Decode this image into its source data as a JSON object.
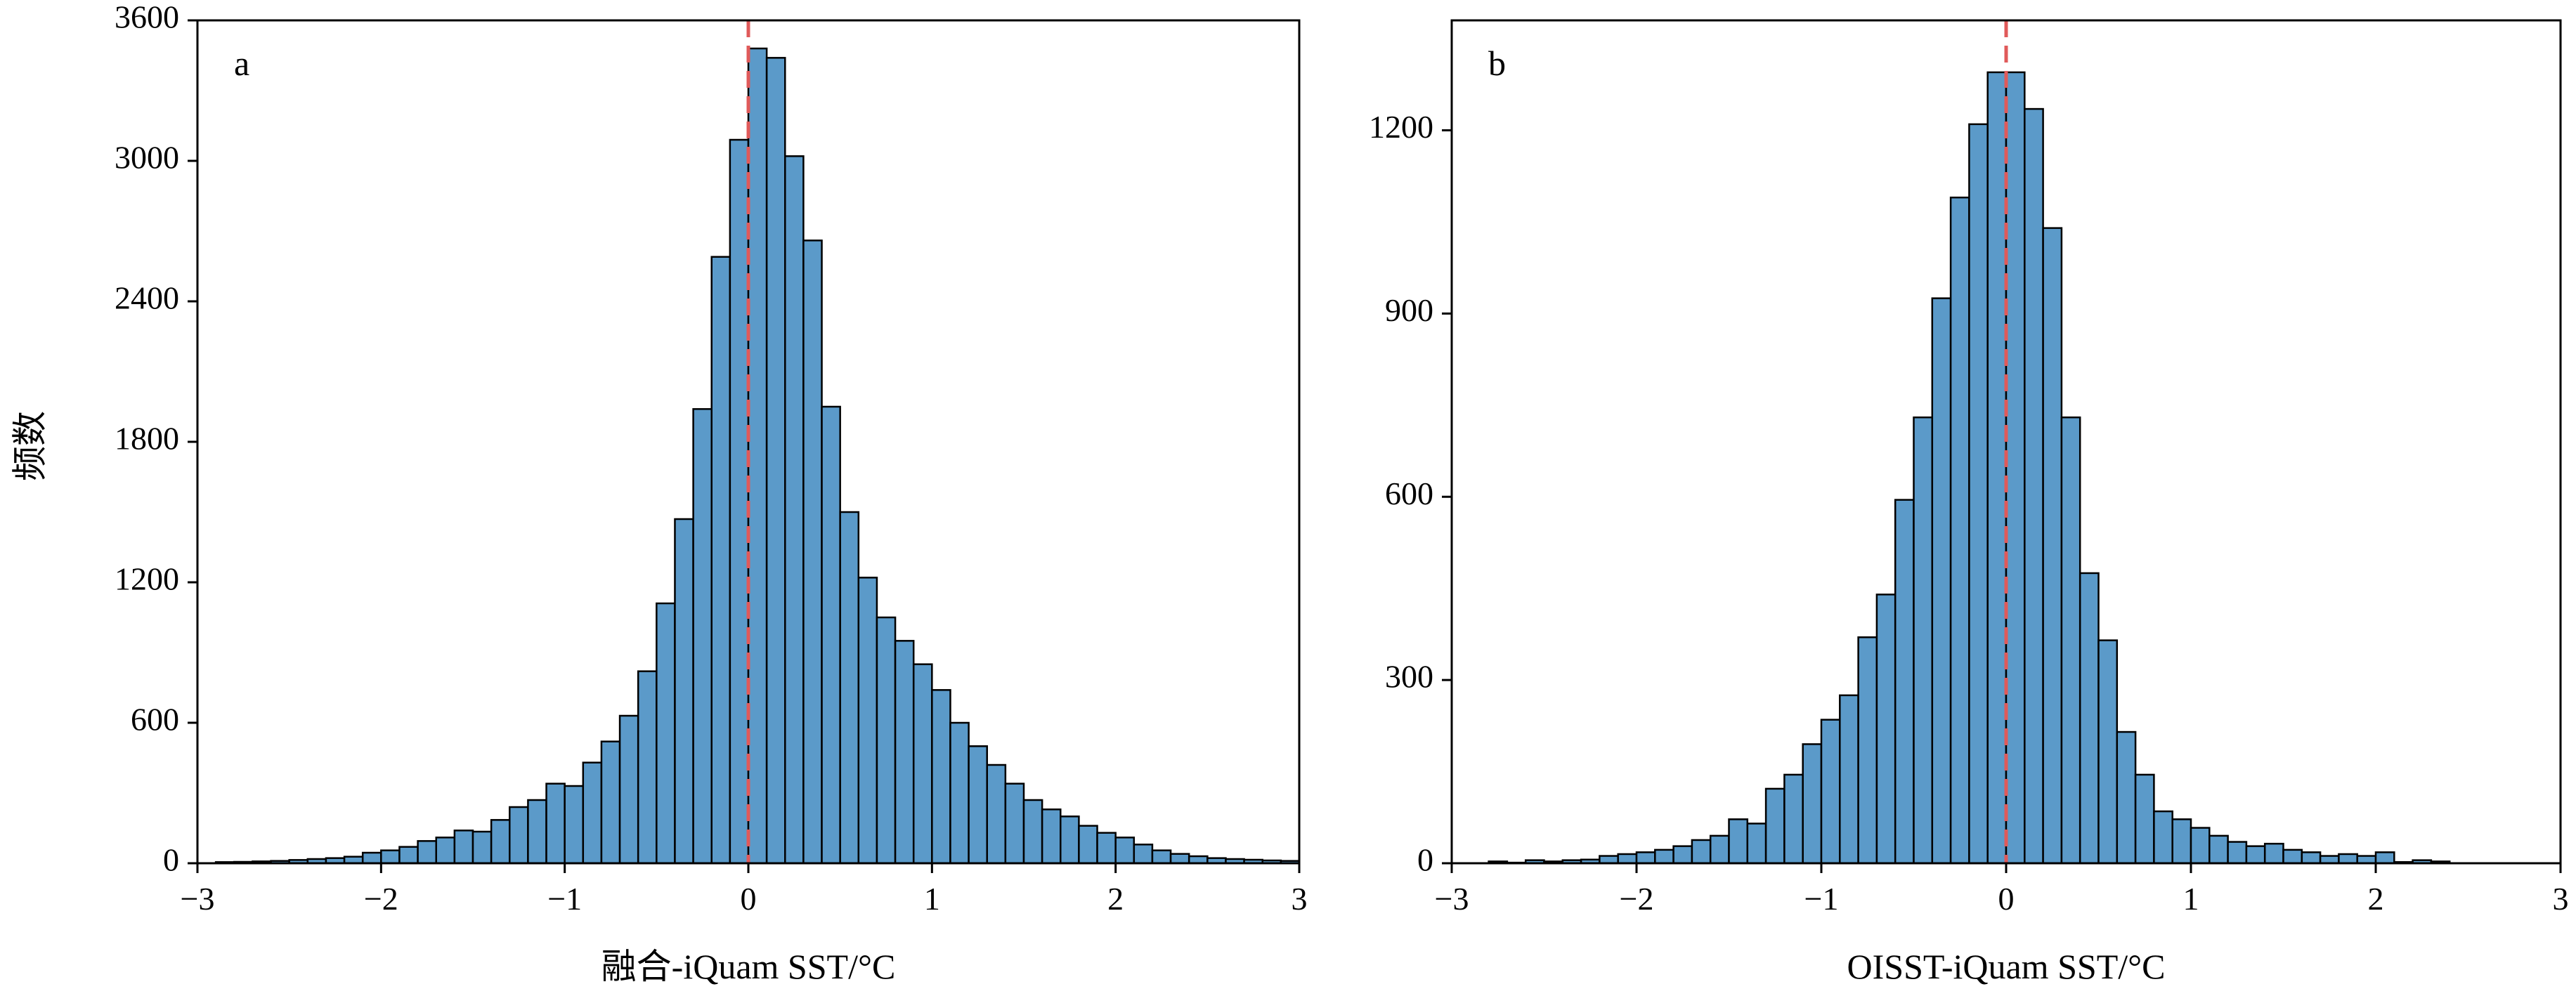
{
  "y_axis_label": "频数",
  "colors": {
    "bar_fill": "#5b9ac9",
    "bar_edge": "#000000",
    "zero_line": "#e05a5a"
  },
  "chart_data": [
    {
      "type": "bar",
      "panel_label": "a",
      "xlabel": "融合-iQuam SST/°C",
      "ylabel": "频数",
      "xlim": [
        -3,
        3
      ],
      "ylim": [
        0,
        3600
      ],
      "xticks": [
        -3,
        -2,
        -1,
        0,
        1,
        2,
        3
      ],
      "xtick_labels": [
        "−3",
        "−2",
        "−1",
        "0",
        "1",
        "2",
        "3"
      ],
      "yticks": [
        0,
        600,
        1200,
        1800,
        2400,
        3000,
        3600
      ],
      "ytick_labels": [
        "0",
        "600",
        "1200",
        "1800",
        "2400",
        "3000",
        "3600"
      ],
      "bin_width": 0.1,
      "bins_start": [
        -2.9,
        -2.8,
        -2.7,
        -2.6,
        -2.5,
        -2.4,
        -2.3,
        -2.2,
        -2.1,
        -2.0,
        -1.9,
        -1.8,
        -1.7,
        -1.6,
        -1.5,
        -1.4,
        -1.3,
        -1.2,
        -1.1,
        -1.0,
        -0.9,
        -0.8,
        -0.7,
        -0.6,
        -0.5,
        -0.4,
        -0.3,
        -0.2,
        -0.1,
        0.0,
        0.1,
        0.2,
        0.3,
        0.4,
        0.5,
        0.6,
        0.7,
        0.8,
        0.9,
        1.0,
        1.1,
        1.2,
        1.3,
        1.4,
        1.5,
        1.6,
        1.7,
        1.8,
        1.9,
        2.0,
        2.1,
        2.2,
        2.3,
        2.4,
        2.5,
        2.6,
        2.7,
        2.8,
        2.9
      ],
      "values": [
        5,
        6,
        8,
        10,
        14,
        18,
        22,
        28,
        45,
        55,
        70,
        95,
        110,
        140,
        135,
        185,
        240,
        270,
        340,
        330,
        430,
        520,
        630,
        820,
        1110,
        1470,
        1940,
        2590,
        3090,
        3480,
        3440,
        3020,
        2660,
        1950,
        1500,
        1220,
        1050,
        950,
        850,
        740,
        600,
        500,
        420,
        340,
        270,
        230,
        200,
        160,
        130,
        110,
        80,
        55,
        40,
        30,
        22,
        18,
        15,
        12,
        10
      ],
      "reference_line_x": 0
    },
    {
      "type": "bar",
      "panel_label": "b",
      "xlabel": "OISST-iQuam SST/°C",
      "ylabel": "",
      "xlim": [
        -3,
        3
      ],
      "ylim": [
        0,
        1380
      ],
      "xticks": [
        -3,
        -2,
        -1,
        0,
        1,
        2,
        3
      ],
      "xtick_labels": [
        "−3",
        "−2",
        "−1",
        "0",
        "1",
        "2",
        "3"
      ],
      "yticks": [
        0,
        300,
        600,
        900,
        1200
      ],
      "ytick_labels": [
        "0",
        "300",
        "600",
        "900",
        "1200"
      ],
      "bin_width": 0.1,
      "bins_start": [
        -2.8,
        -2.7,
        -2.6,
        -2.5,
        -2.4,
        -2.3,
        -2.2,
        -2.1,
        -2.0,
        -1.9,
        -1.8,
        -1.7,
        -1.6,
        -1.5,
        -1.4,
        -1.3,
        -1.2,
        -1.1,
        -1.0,
        -0.9,
        -0.8,
        -0.7,
        -0.6,
        -0.5,
        -0.4,
        -0.3,
        -0.2,
        -0.1,
        0.0,
        0.1,
        0.2,
        0.3,
        0.4,
        0.5,
        0.6,
        0.7,
        0.8,
        0.9,
        1.0,
        1.1,
        1.2,
        1.3,
        1.4,
        1.5,
        1.6,
        1.7,
        1.8,
        1.9,
        2.0,
        2.1,
        2.2,
        2.3
      ],
      "values": [
        3,
        1,
        5,
        3,
        5,
        6,
        12,
        15,
        18,
        22,
        28,
        38,
        45,
        72,
        65,
        122,
        145,
        195,
        235,
        275,
        370,
        440,
        595,
        730,
        925,
        1090,
        1210,
        1295,
        1295,
        1235,
        1040,
        730,
        475,
        365,
        215,
        145,
        85,
        72,
        58,
        45,
        35,
        28,
        32,
        22,
        18,
        12,
        15,
        12,
        18,
        2,
        5,
        3
      ],
      "reference_line_x": 0
    }
  ]
}
